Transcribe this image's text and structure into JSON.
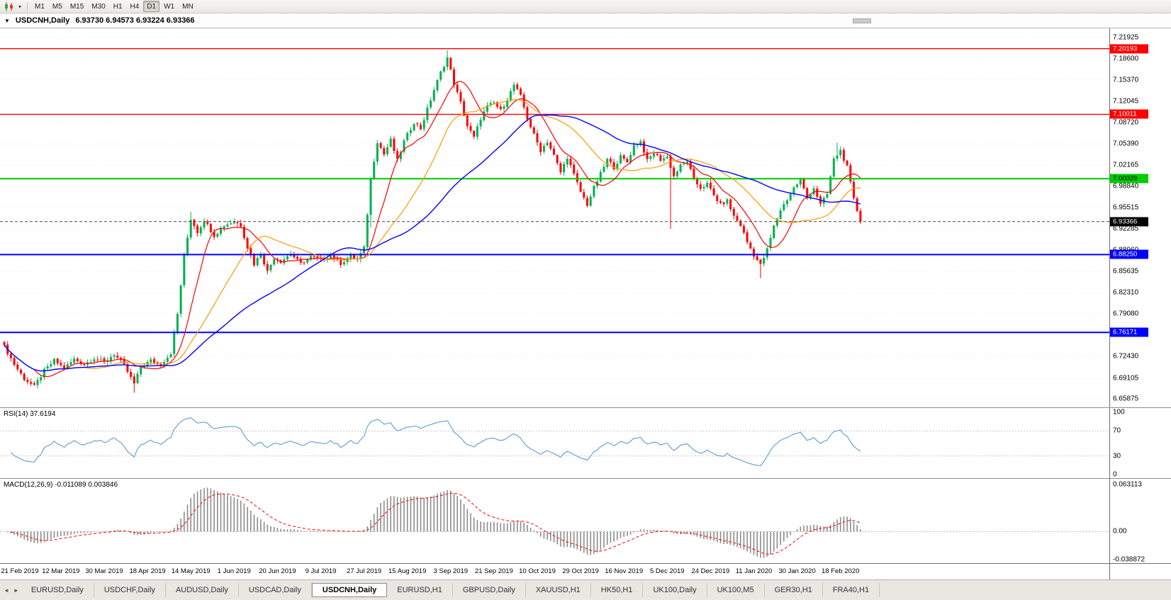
{
  "icons": {
    "dropdown": "▼",
    "caret": "▾",
    "tab_left": "◄",
    "tab_right": "►"
  },
  "toolbar": {
    "timeframes": [
      {
        "label": "M1",
        "active": false
      },
      {
        "label": "M5",
        "active": false
      },
      {
        "label": "M15",
        "active": false
      },
      {
        "label": "M30",
        "active": false
      },
      {
        "label": "H1",
        "active": false
      },
      {
        "label": "H4",
        "active": false
      },
      {
        "label": "D1",
        "active": true
      },
      {
        "label": "W1",
        "active": false
      },
      {
        "label": "MN",
        "active": false
      }
    ]
  },
  "chart": {
    "symbol_period": "USDCNH,Daily",
    "ohlc": "6.93730 6.94573 6.93224 6.93366",
    "open": "6.93730",
    "high": "6.94573",
    "low": "6.93224",
    "close": "6.93366"
  },
  "indicators": {
    "rsi": {
      "label": "RSI(14) 37.6194",
      "name": "RSI",
      "period": 14,
      "current": 37.6194,
      "axis_labels": [
        "100",
        "70",
        "30",
        "0"
      ],
      "levels": [
        70,
        30
      ],
      "range": [
        0,
        100
      ],
      "line_color": "#5b9bd5"
    },
    "macd": {
      "label": "MACD(12,26,9) -0.011089 0.003846",
      "name": "MACD",
      "fast": 12,
      "slow": 26,
      "signal": 9,
      "main_value": -0.011089,
      "signal_value": 0.003846,
      "axis_labels": [
        "0.063113",
        "0.00",
        "-0.038872"
      ],
      "axis_values": [
        0.063113,
        0,
        -0.038872
      ],
      "histogram_color": "#8c8c8c",
      "signal_color": "#ff0000"
    }
  },
  "price_axis": {
    "ticks": [
      "7.21925",
      "7.18600",
      "7.15370",
      "7.12045",
      "7.08720",
      "7.05390",
      "7.02165",
      "6.98840",
      "6.95515",
      "6.92285",
      "6.88960",
      "6.85635",
      "6.82310",
      "6.79080",
      "6.75755",
      "6.72430",
      "6.69105",
      "6.65875"
    ]
  },
  "chart_data": [
    {
      "type": "candlestick",
      "title": "USDCNH,Daily",
      "candle_count": 258,
      "up_color": "#00b050",
      "down_color": "#ff0000",
      "y_range": [
        6.6455,
        7.2335
      ],
      "last_close": 6.93366,
      "close_anchors": [
        [
          0,
          6.74
        ],
        [
          3,
          6.712
        ],
        [
          6,
          6.69
        ],
        [
          9,
          6.678
        ],
        [
          12,
          6.702
        ],
        [
          15,
          6.718
        ],
        [
          18,
          6.706
        ],
        [
          21,
          6.72
        ],
        [
          24,
          6.712
        ],
        [
          27,
          6.722
        ],
        [
          30,
          6.716
        ],
        [
          33,
          6.728
        ],
        [
          36,
          6.71
        ],
        [
          39,
          6.682
        ],
        [
          41,
          6.708
        ],
        [
          44,
          6.718
        ],
        [
          47,
          6.712
        ],
        [
          50,
          6.73
        ],
        [
          52,
          6.79
        ],
        [
          54,
          6.88
        ],
        [
          56,
          6.938
        ],
        [
          58,
          6.918
        ],
        [
          60,
          6.936
        ],
        [
          63,
          6.912
        ],
        [
          66,
          6.928
        ],
        [
          69,
          6.934
        ],
        [
          71,
          6.928
        ],
        [
          73,
          6.894
        ],
        [
          75,
          6.868
        ],
        [
          77,
          6.884
        ],
        [
          79,
          6.856
        ],
        [
          81,
          6.878
        ],
        [
          83,
          6.872
        ],
        [
          86,
          6.884
        ],
        [
          89,
          6.868
        ],
        [
          92,
          6.879
        ],
        [
          95,
          6.874
        ],
        [
          98,
          6.882
        ],
        [
          101,
          6.869
        ],
        [
          104,
          6.88
        ],
        [
          106,
          6.875
        ],
        [
          108,
          6.892
        ],
        [
          110,
          7.0
        ],
        [
          112,
          7.058
        ],
        [
          114,
          7.038
        ],
        [
          116,
          7.06
        ],
        [
          118,
          7.028
        ],
        [
          120,
          7.058
        ],
        [
          123,
          7.088
        ],
        [
          125,
          7.078
        ],
        [
          127,
          7.108
        ],
        [
          129,
          7.138
        ],
        [
          131,
          7.165
        ],
        [
          133,
          7.188
        ],
        [
          135,
          7.148
        ],
        [
          137,
          7.118
        ],
        [
          139,
          7.082
        ],
        [
          141,
          7.064
        ],
        [
          143,
          7.094
        ],
        [
          145,
          7.112
        ],
        [
          147,
          7.118
        ],
        [
          149,
          7.106
        ],
        [
          151,
          7.124
        ],
        [
          153,
          7.146
        ],
        [
          155,
          7.128
        ],
        [
          157,
          7.094
        ],
        [
          159,
          7.068
        ],
        [
          161,
          7.044
        ],
        [
          163,
          7.058
        ],
        [
          165,
          7.036
        ],
        [
          167,
          7.01
        ],
        [
          169,
          7.034
        ],
        [
          171,
          7.006
        ],
        [
          173,
          6.98
        ],
        [
          175,
          6.96
        ],
        [
          177,
          6.986
        ],
        [
          179,
          7.008
        ],
        [
          181,
          7.03
        ],
        [
          183,
          7.018
        ],
        [
          185,
          7.034
        ],
        [
          187,
          7.026
        ],
        [
          189,
          7.052
        ],
        [
          191,
          7.058
        ],
        [
          193,
          7.028
        ],
        [
          195,
          7.04
        ],
        [
          197,
          7.03
        ],
        [
          199,
          7.034
        ],
        [
          201,
          7.004
        ],
        [
          203,
          7.02
        ],
        [
          205,
          7.028
        ],
        [
          207,
          6.998
        ],
        [
          209,
          6.986
        ],
        [
          211,
          6.992
        ],
        [
          213,
          6.974
        ],
        [
          215,
          6.96
        ],
        [
          217,
          6.966
        ],
        [
          219,
          6.942
        ],
        [
          221,
          6.928
        ],
        [
          223,
          6.902
        ],
        [
          225,
          6.882
        ],
        [
          227,
          6.866
        ],
        [
          229,
          6.89
        ],
        [
          231,
          6.926
        ],
        [
          233,
          6.952
        ],
        [
          235,
          6.968
        ],
        [
          237,
          6.986
        ],
        [
          239,
          6.998
        ],
        [
          241,
          6.97
        ],
        [
          243,
          6.986
        ],
        [
          245,
          6.96
        ],
        [
          247,
          6.976
        ],
        [
          249,
          7.03
        ],
        [
          251,
          7.044
        ],
        [
          253,
          7.018
        ],
        [
          255,
          6.968
        ],
        [
          257,
          6.934
        ]
      ],
      "wick_overrides": {
        "39": {
          "low": 6.668
        },
        "56": {
          "high": 6.949
        },
        "110": {
          "low": 6.925
        },
        "133": {
          "high": 7.1995
        },
        "200": {
          "low": 6.922
        },
        "227": {
          "low": 6.846
        },
        "250": {
          "high": 7.056
        }
      },
      "moving_averages": [
        {
          "period": 10,
          "color": "#ff0000",
          "width": 1.2
        },
        {
          "period": 25,
          "color": "#ff9900",
          "width": 1.2
        },
        {
          "period": 50,
          "color": "#0000ff",
          "width": 1.4
        }
      ],
      "h_lines": [
        {
          "value": 7.20193,
          "label": "7.20193",
          "color": "#ff0000",
          "text": "#ffffff",
          "width": 1.4
        },
        {
          "value": 7.10011,
          "label": "7.10011",
          "color": "#ff0000",
          "text": "#ffffff",
          "width": 1.4
        },
        {
          "value": 7.00029,
          "label": "7.00029",
          "color": "#00cc00",
          "text": "#000000",
          "width": 2
        },
        {
          "value": 6.8825,
          "label": "6.88250",
          "color": "#0000ff",
          "text": "#ffffff",
          "width": 2
        },
        {
          "value": 6.76171,
          "label": "6.76171",
          "color": "#0000ff",
          "text": "#ffffff",
          "width": 2
        }
      ],
      "current_price": {
        "value": 6.93366,
        "label": "6.93366",
        "color": "#000000",
        "text": "#ffffff"
      },
      "x_labels": [
        "21 Feb 2019",
        "12 Mar 2019",
        "30 Mar 2019",
        "18 Apr 2019",
        "14 May 2019",
        "1 Jun 2019",
        "20 Jun 2019",
        "9 Jul 2019",
        "27 Jul 2019",
        "15 Aug 2019",
        "3 Sep 2019",
        "21 Sep 2019",
        "10 Oct 2019",
        "29 Oct 2019",
        "16 Nov 2019",
        "5 Dec 2019",
        "24 Dec 2019",
        "11 Jan 2020",
        "30 Jan 2020",
        "18 Feb 2020"
      ],
      "x_label_first_index": 4,
      "x_label_step": 13
    },
    {
      "type": "line",
      "name": "RSI(14)",
      "current": 37.6194,
      "range": [
        0,
        100
      ],
      "levels": [
        70,
        30
      ]
    },
    {
      "type": "bar",
      "name": "MACD(12,26,9)",
      "main": -0.011089,
      "signal": 0.003846,
      "axis": [
        0.063113,
        0,
        -0.038872
      ]
    }
  ],
  "tabs": {
    "active": "USDCNH,Daily",
    "items": [
      {
        "label": "EURUSD,Daily",
        "active": false
      },
      {
        "label": "USDCHF,Daily",
        "active": false
      },
      {
        "label": "AUDUSD,Daily",
        "active": false
      },
      {
        "label": "USDCAD,Daily",
        "active": false
      },
      {
        "label": "USDCNH,Daily",
        "active": true
      },
      {
        "label": "EURUSD,H1",
        "active": false
      },
      {
        "label": "GBPUSD,Daily",
        "active": false
      },
      {
        "label": "XAUUSD,H1",
        "active": false
      },
      {
        "label": "HK50,H1",
        "active": false
      },
      {
        "label": "UK100,Daily",
        "active": false
      },
      {
        "label": "UK100,M5",
        "active": false
      },
      {
        "label": "GER30,H1",
        "active": false
      },
      {
        "label": "FRA40,H1",
        "active": false
      }
    ]
  }
}
